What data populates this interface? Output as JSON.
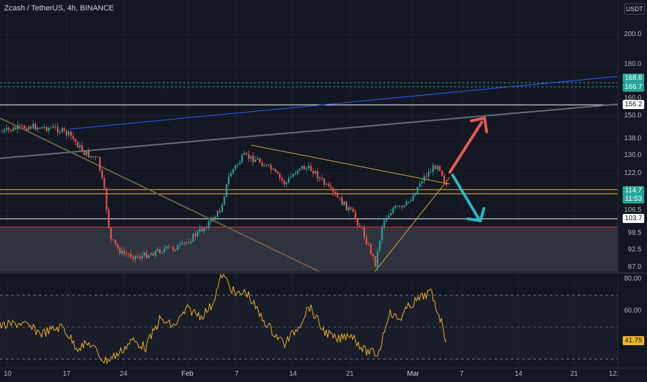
{
  "header": {
    "title": "Zcash / TetherUS, 4h, BINANCE"
  },
  "currency_button": "USDT",
  "price_axis": {
    "ticks": [
      "200.0",
      "180.0",
      "160.0",
      "150.0",
      "138.0",
      "130.0",
      "122.0",
      "106.5",
      "98.5",
      "92.5",
      "87.0"
    ]
  },
  "price_tags": {
    "upper_channel_a": "168.6",
    "upper_channel_b": "166.7",
    "resistance": "156.2",
    "current_price": "114.7",
    "countdown": "11:53",
    "support": "103.7"
  },
  "rsi_axis": {
    "ticks": [
      "80.00",
      "60.00"
    ],
    "value": "41.75"
  },
  "time_axis": {
    "labels": [
      "10",
      "17",
      "24",
      "Feb",
      "7",
      "14",
      "21",
      "Mar",
      "7",
      "14",
      "21",
      "12:"
    ]
  },
  "colors": {
    "background": "#131722",
    "bull_candle": "#26a69a",
    "bear_candle": "#ef5350",
    "rsi_line": "#f0b429",
    "up_arrow": "#e85a5a",
    "down_arrow": "#2bb8c6",
    "channel_line": "#2962ff",
    "support_zone": "#3a3d47",
    "gold_lines": "#c9a14a"
  },
  "icons": {
    "up_arrow": "arrow-up-right-icon",
    "down_arrow": "arrow-down-right-icon"
  }
}
